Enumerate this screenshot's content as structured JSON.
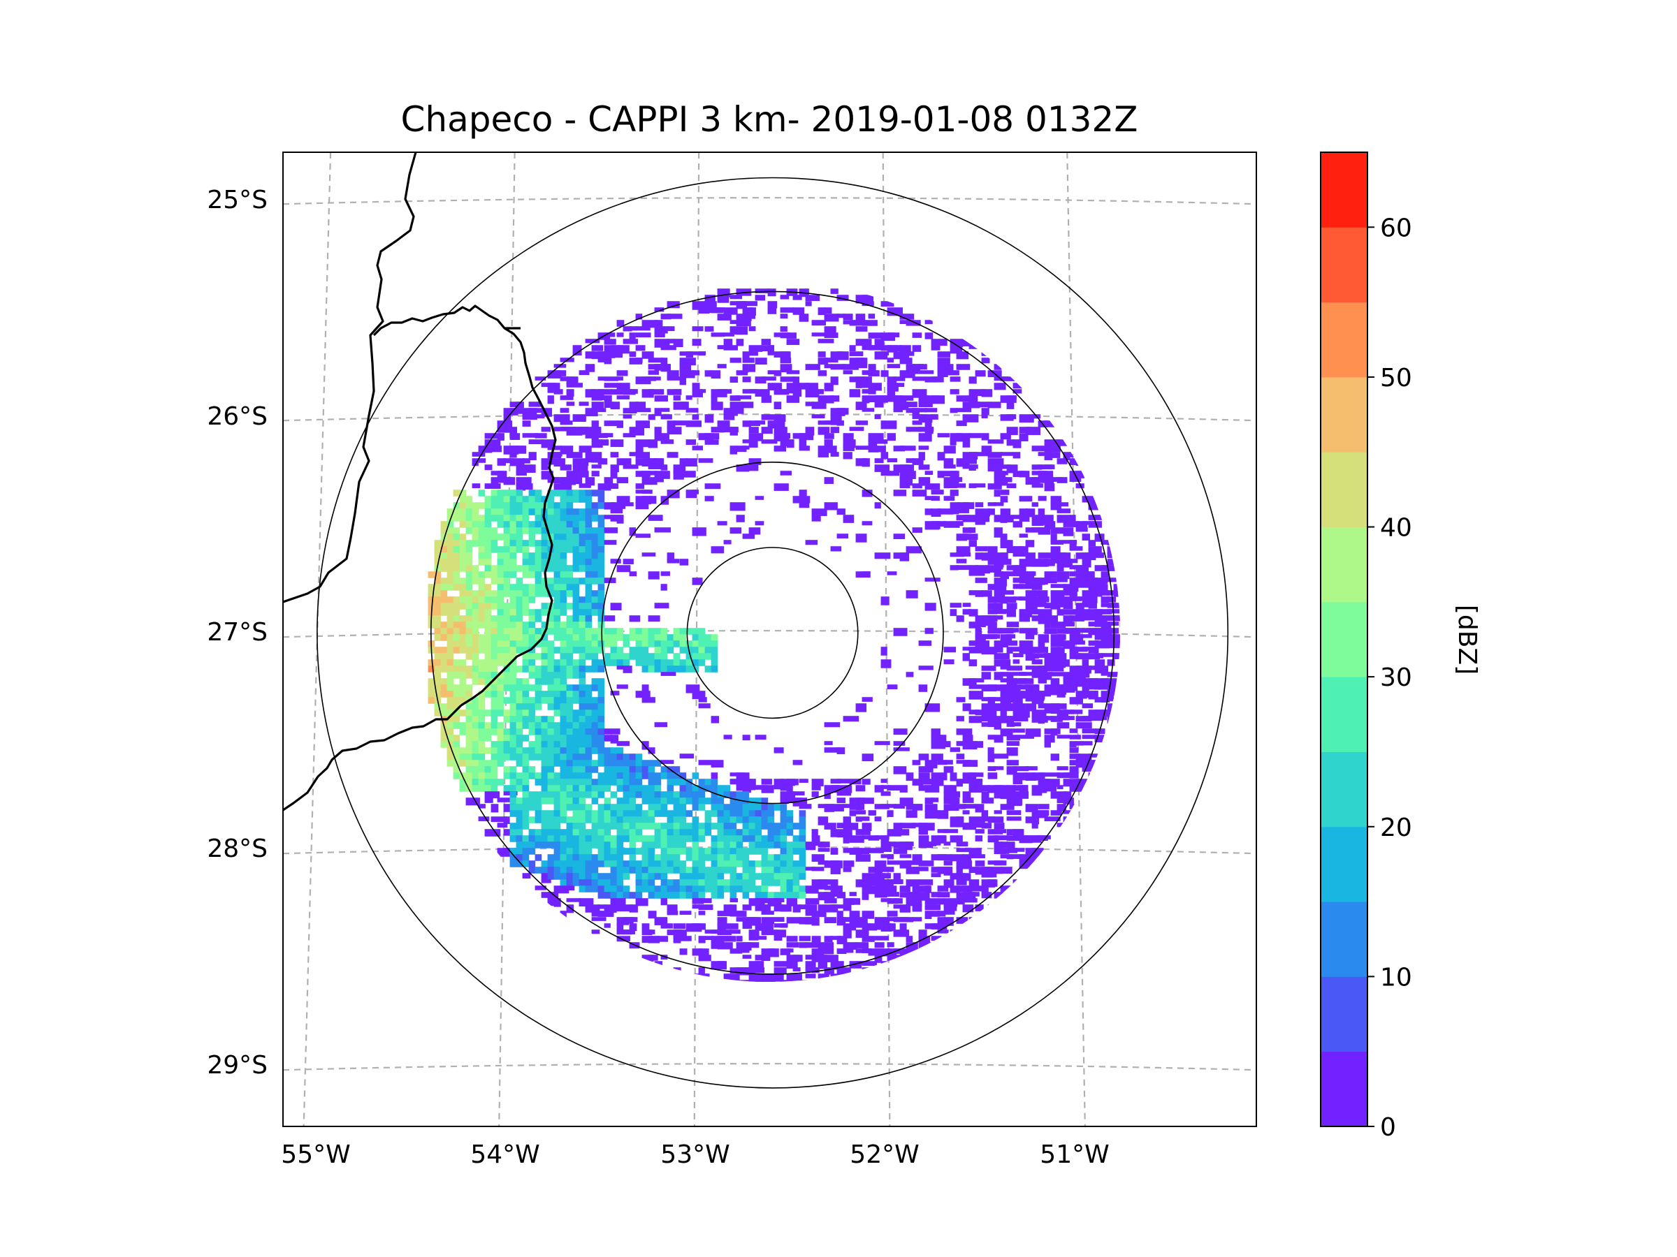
{
  "title": "Chapeco - CAPPI 3 km- 2019-01-08 0132Z",
  "map": {
    "lat_ticks": [
      "25°S",
      "26°S",
      "27°S",
      "28°S",
      "29°S"
    ],
    "lon_ticks": [
      "55°W",
      "54°W",
      "53°W",
      "52°W",
      "51°W"
    ],
    "lat_values": [
      -25,
      -26,
      -27,
      -28,
      -29
    ],
    "lon_values": [
      -55,
      -54,
      -53,
      -52,
      -51
    ],
    "extent": {
      "lon_min": -55.18,
      "lon_max": -50.05,
      "lat_min": -29.28,
      "lat_max": -24.78
    },
    "radar_center": {
      "lon": -52.6,
      "lat": -27.0
    },
    "range_rings_deg": [
      0.45,
      0.9,
      1.8,
      2.4
    ],
    "gridline_color": "#b0b0b0",
    "border_color": "#000000"
  },
  "colorbar": {
    "label": "[dBZ]",
    "tick_labels": [
      "0",
      "10",
      "20",
      "30",
      "40",
      "50",
      "60"
    ],
    "tick_values": [
      0,
      10,
      20,
      30,
      40,
      50,
      60
    ],
    "range": [
      0,
      65
    ],
    "levels": [
      0,
      5,
      10,
      15,
      20,
      25,
      30,
      35,
      40,
      45,
      50,
      55,
      60,
      65
    ],
    "colors": [
      "#7222ff",
      "#4a58f6",
      "#2b8aee",
      "#19b6e1",
      "#2fd4cc",
      "#4ef0b4",
      "#7efb9a",
      "#aef88a",
      "#d6e07a",
      "#f5bd6e",
      "#ff9050",
      "#ff5a33",
      "#ff2010"
    ]
  }
}
